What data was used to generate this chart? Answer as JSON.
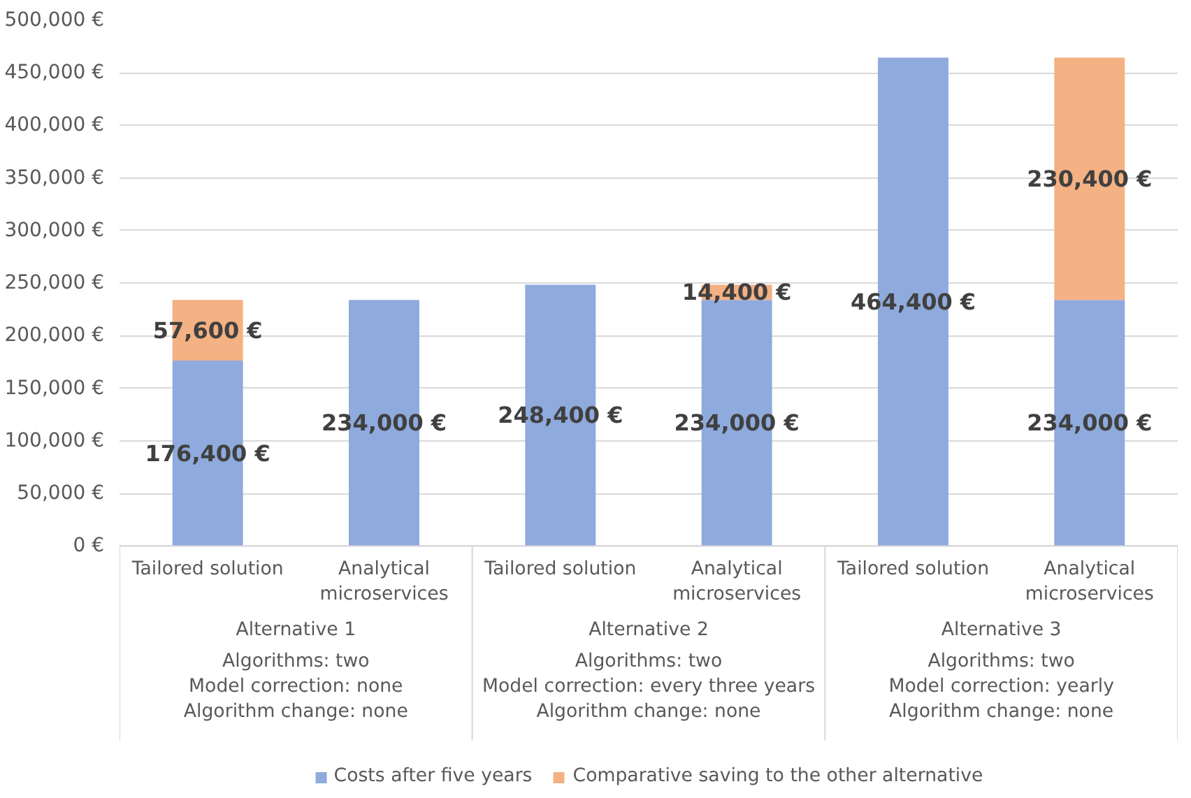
{
  "chart_data": {
    "type": "bar",
    "stacked": true,
    "categories": [
      "Tailored solution",
      "Analytical\nmicroservices",
      "Tailored solution",
      "Analytical\nmicroservices",
      "Tailored solution",
      "Analytical\nmicroservices"
    ],
    "series": [
      {
        "name": "Costs after five years",
        "color": "#8faadc",
        "values": [
          176400,
          234000,
          248400,
          234000,
          464400,
          234000
        ],
        "value_labels": [
          "176,400 €",
          "234,000 €",
          "248,400 €",
          "234,000 €",
          "464,400 €",
          "234,000 €"
        ]
      },
      {
        "name": "Comparative saving to the other alternative",
        "color": "#f4b183",
        "values": [
          57600,
          null,
          null,
          14400,
          null,
          230400
        ],
        "value_labels": [
          "57,600 €",
          null,
          null,
          "14,400 €",
          null,
          "230,400 €"
        ]
      }
    ],
    "ylim": [
      0,
      500000
    ],
    "yticks": [
      {
        "value": 0,
        "label": "0 €"
      },
      {
        "value": 50000,
        "label": "50,000 €"
      },
      {
        "value": 100000,
        "label": "100,000 €"
      },
      {
        "value": 150000,
        "label": "150,000 €"
      },
      {
        "value": 200000,
        "label": "200,000 €"
      },
      {
        "value": 250000,
        "label": "250,000 €"
      },
      {
        "value": 300000,
        "label": "300,000 €"
      },
      {
        "value": 350000,
        "label": "350,000 €"
      },
      {
        "value": 400000,
        "label": "400,000 €"
      },
      {
        "value": 450000,
        "label": "450,000 €"
      },
      {
        "value": 500000,
        "label": "500,000 €"
      }
    ],
    "annotations": [
      "Alternative 1",
      "Algorithms: two\nModel correction: none\nAlgorithm change: none",
      "Alternative 2",
      "Algorithms: two\nModel correction: every three years\nAlgorithm change: none",
      "Alternative 3",
      "Algorithms: two\nModel correction: yearly\nAlgorithm change: none"
    ],
    "grid": "y",
    "legend": "bottom"
  }
}
